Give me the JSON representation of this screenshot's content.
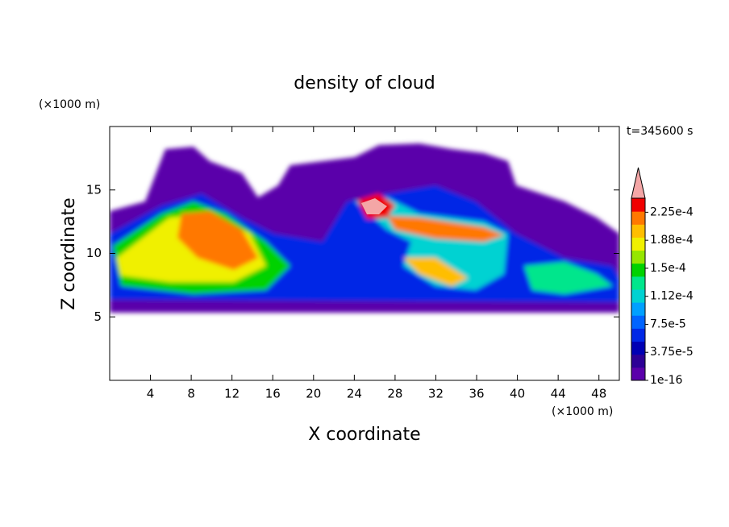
{
  "chart_data": {
    "type": "contour",
    "title": "density of cloud",
    "xlabel": "X coordinate",
    "ylabel": "Z coordinate",
    "x_unit": "(×1000 m)",
    "y_unit": "(×1000 m)",
    "annotation": "t=345600 s",
    "xlim": [
      0,
      50
    ],
    "xticks": [
      4,
      8,
      12,
      16,
      20,
      24,
      28,
      32,
      36,
      40,
      44,
      48
    ],
    "ylim": [
      0,
      20
    ],
    "yticks": [
      5,
      10,
      15
    ],
    "colorbar": {
      "lim": [
        1e-16,
        0.00024375
      ],
      "colors": [
        "#5a00aa",
        "#2d0096",
        "#0000b4",
        "#0028e6",
        "#0064ff",
        "#00a0ff",
        "#00d2d2",
        "#00e68c",
        "#00d200",
        "#96e600",
        "#f0f000",
        "#ffbe00",
        "#ff7800",
        "#f00000"
      ],
      "extend_color": "#f4a6a6",
      "ticks": [
        {
          "value": 1e-16,
          "label": "1e-16"
        },
        {
          "value": 3.75e-05,
          "label": "3.75e-5"
        },
        {
          "value": 7.5e-05,
          "label": "7.5e-5"
        },
        {
          "value": 0.0001125,
          "label": "1.12e-4"
        },
        {
          "value": 0.00015,
          "label": "1.5e-4"
        },
        {
          "value": 0.0001875,
          "label": "1.88e-4"
        },
        {
          "value": 0.000225,
          "label": "2.25e-4"
        }
      ]
    }
  }
}
